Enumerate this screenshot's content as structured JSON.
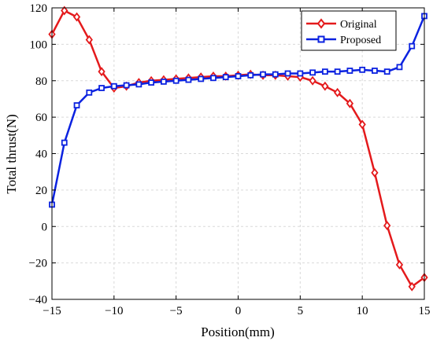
{
  "chart_data": {
    "type": "line",
    "title": "",
    "xlabel": "Position(mm)",
    "ylabel": "Total thrust(N)",
    "xlim": [
      -15,
      15
    ],
    "ylim": [
      -40,
      120
    ],
    "xticks": [
      -15,
      -10,
      -5,
      0,
      5,
      10,
      15
    ],
    "yticks": [
      -40,
      -20,
      0,
      20,
      40,
      60,
      80,
      100,
      120
    ],
    "xtick_labels": [
      "−15",
      "−10",
      "−5",
      "0",
      "5",
      "10",
      "15"
    ],
    "ytick_labels": [
      "−40",
      "−20",
      "0",
      "20",
      "40",
      "60",
      "80",
      "100",
      "120"
    ],
    "grid": true,
    "legend_position": "top-right",
    "x": [
      -15,
      -14,
      -13,
      -12,
      -11,
      -10,
      -9,
      -8,
      -7,
      -6,
      -5,
      -4,
      -3,
      -2,
      -1,
      0,
      1,
      2,
      3,
      4,
      5,
      6,
      7,
      8,
      9,
      10,
      11,
      12,
      13,
      14,
      15
    ],
    "series": [
      {
        "name": "Original",
        "color": "#e41a1c",
        "marker": "diamond",
        "values": [
          105.5,
          118.5,
          115,
          102.5,
          85,
          76,
          77,
          79,
          80,
          80.5,
          81,
          81.5,
          82,
          82.5,
          82.5,
          83,
          83.5,
          83,
          83,
          82.5,
          82,
          80,
          77,
          73.5,
          67.5,
          56,
          29.5,
          0.5,
          -21,
          -33,
          -28
        ]
      },
      {
        "name": "Proposed",
        "color": "#0b22e0",
        "marker": "square",
        "values": [
          12,
          46,
          66.5,
          73.5,
          76,
          77,
          77.5,
          78,
          79,
          79.5,
          80,
          80.5,
          81,
          81.5,
          82,
          82.5,
          83,
          83.5,
          83.5,
          84,
          84,
          84.5,
          85,
          85,
          85.5,
          86,
          85.5,
          85,
          87.5,
          99,
          115.5
        ]
      }
    ]
  }
}
